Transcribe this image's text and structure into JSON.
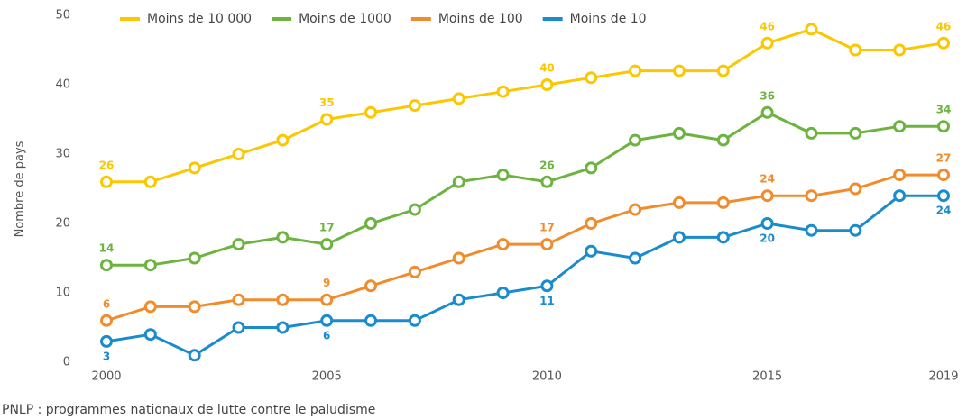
{
  "chart_data": {
    "type": "line",
    "y_label": "Nombre de pays",
    "note": "PNLP : programmes nationaux de lutte contre le paludisme",
    "x": [
      2000,
      2001,
      2002,
      2003,
      2004,
      2005,
      2006,
      2007,
      2008,
      2009,
      2010,
      2011,
      2012,
      2013,
      2014,
      2015,
      2016,
      2017,
      2018,
      2019
    ],
    "xlim": [
      2000,
      2019
    ],
    "xticks": [
      2000,
      2005,
      2010,
      2015,
      2019
    ],
    "ylim": [
      0,
      50
    ],
    "yticks": [
      0,
      10,
      20,
      30,
      40,
      50
    ],
    "grid": false,
    "legend": "top",
    "series": [
      {
        "name": "Moins de 10 000",
        "color": "#fbc700",
        "label_position": "above",
        "label_indices": [
          0,
          5,
          10,
          15,
          19
        ],
        "values": [
          26,
          26,
          28,
          30,
          32,
          35,
          36,
          37,
          38,
          39,
          40,
          41,
          42,
          42,
          42,
          46,
          48,
          45,
          45,
          46
        ]
      },
      {
        "name": "Moins de 1000",
        "color": "#6db33f",
        "label_position": "above",
        "label_indices": [
          0,
          5,
          10,
          15,
          19
        ],
        "values": [
          14,
          14,
          15,
          17,
          18,
          17,
          20,
          22,
          26,
          27,
          26,
          28,
          32,
          33,
          32,
          36,
          33,
          33,
          34,
          34
        ]
      },
      {
        "name": "Moins de 100",
        "color": "#f08c2c",
        "label_position": "above",
        "label_indices": [
          0,
          5,
          10,
          15,
          19
        ],
        "values": [
          6,
          8,
          8,
          9,
          9,
          9,
          11,
          13,
          15,
          17,
          17,
          20,
          22,
          23,
          23,
          24,
          24,
          25,
          27,
          27
        ]
      },
      {
        "name": "Moins de 10",
        "color": "#1a8bcc",
        "label_position": "below",
        "label_indices": [
          0,
          5,
          10,
          15,
          19
        ],
        "values": [
          3,
          4,
          1,
          5,
          5,
          6,
          6,
          6,
          9,
          10,
          11,
          16,
          15,
          18,
          18,
          20,
          19,
          19,
          24,
          24
        ]
      }
    ]
  }
}
